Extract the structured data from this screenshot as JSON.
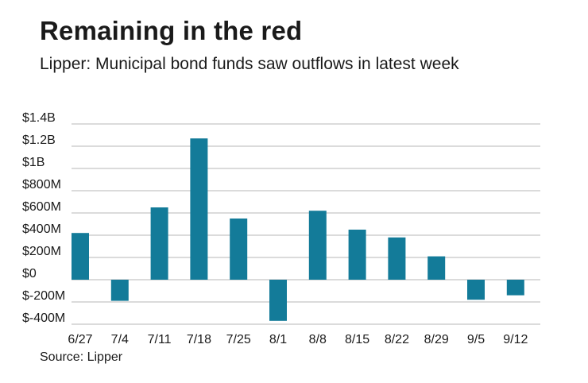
{
  "header": {
    "title": "Remaining in the red",
    "subtitle": "Lipper: Municipal bond funds saw outflows in latest week"
  },
  "footer": {
    "source": "Source: Lipper"
  },
  "colors": {
    "bar": "#137b99",
    "grid": "#b7b7b7",
    "text": "#1a1a1a"
  },
  "chart_data": {
    "type": "bar",
    "title": "Remaining in the red",
    "subtitle": "Lipper: Municipal bond funds saw outflows in latest week",
    "xlabel": "",
    "ylabel": "",
    "unit": "USD millions",
    "categories": [
      "6/27",
      "7/4",
      "7/11",
      "7/18",
      "7/25",
      "8/1",
      "8/8",
      "8/15",
      "8/22",
      "8/29",
      "9/5",
      "9/12"
    ],
    "values": [
      420,
      -190,
      650,
      1270,
      550,
      -370,
      620,
      450,
      380,
      210,
      -180,
      -140
    ],
    "ylim": [
      -400,
      1400
    ],
    "yticks": [
      1400,
      1200,
      1000,
      800,
      600,
      400,
      200,
      0,
      -200,
      -400
    ],
    "ytick_labels": [
      "$1.4B",
      "$1.2B",
      "$1B",
      "$800M",
      "$600M",
      "$400M",
      "$200M",
      "$0",
      "$-200M",
      "$-400M"
    ],
    "grid": true,
    "legend": "none"
  }
}
